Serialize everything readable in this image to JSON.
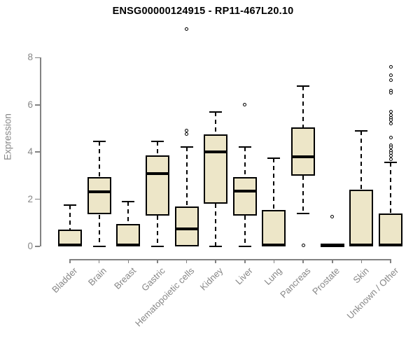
{
  "chart_data": {
    "type": "boxplot",
    "title": "ENSG00000124915 - RP11-467L20.10",
    "xlabel": "",
    "ylabel": "Expression",
    "ylim": [
      0,
      8
    ],
    "yticks": [
      0,
      2,
      4,
      6,
      8
    ],
    "grid": false,
    "legend": false,
    "colors": {
      "box_fill": "#EDE6C8",
      "box_border": "#000000",
      "median": "#000000",
      "axis": "#828282",
      "tick_text": "#878787",
      "title_text": "#000000",
      "background": "#ffffff"
    },
    "categories": [
      "Bladder",
      "Brain",
      "Breast",
      "Gastric",
      "Hematopoietic cells",
      "Kidney",
      "Liver",
      "Lung",
      "Pancreas",
      "Prostate",
      "Skin",
      "Unknown / Other"
    ],
    "series": [
      {
        "category": "Bladder",
        "min": 0,
        "q1": 0,
        "median": 0.05,
        "q3": 0.7,
        "max": 1.75,
        "outliers": []
      },
      {
        "category": "Brain",
        "min": 0,
        "q1": 1.35,
        "median": 2.3,
        "q3": 2.95,
        "max": 4.45,
        "outliers": []
      },
      {
        "category": "Breast",
        "min": 0,
        "q1": 0,
        "median": 0.05,
        "q3": 0.95,
        "max": 1.9,
        "outliers": []
      },
      {
        "category": "Gastric",
        "min": 0,
        "q1": 1.3,
        "median": 3.1,
        "q3": 3.85,
        "max": 4.45,
        "outliers": []
      },
      {
        "category": "Hematopoietic cells",
        "min": 0,
        "q1": 0,
        "median": 0.75,
        "q3": 1.7,
        "max": 4.2,
        "outliers": [
          4.75,
          4.9,
          9.2
        ]
      },
      {
        "category": "Kidney",
        "min": 0,
        "q1": 1.8,
        "median": 4.0,
        "q3": 4.75,
        "max": 5.7,
        "outliers": []
      },
      {
        "category": "Liver",
        "min": 0,
        "q1": 1.3,
        "median": 2.35,
        "q3": 2.95,
        "max": 4.2,
        "outliers": [
          6.0
        ]
      },
      {
        "category": "Lung",
        "min": 0,
        "q1": 0,
        "median": 0.05,
        "q3": 1.55,
        "max": 3.75,
        "outliers": []
      },
      {
        "category": "Pancreas",
        "min": 1.4,
        "q1": 3.0,
        "median": 3.8,
        "q3": 5.05,
        "max": 6.8,
        "outliers": [
          0.05
        ]
      },
      {
        "category": "Prostate",
        "min": 0,
        "q1": 0,
        "median": 0.05,
        "q3": 0.1,
        "max": 0.1,
        "outliers": [
          1.25
        ]
      },
      {
        "category": "Skin",
        "min": 0,
        "q1": 0,
        "median": 0.05,
        "q3": 2.4,
        "max": 4.9,
        "outliers": []
      },
      {
        "category": "Unknown / Other",
        "min": 0,
        "q1": 0,
        "median": 0.05,
        "q3": 1.4,
        "max": 3.55,
        "outliers": [
          7.6,
          7.25,
          7.05,
          6.6,
          6.5,
          5.7,
          5.55,
          5.45,
          5.35,
          5.2,
          4.6,
          4.3,
          4.2,
          4.05,
          3.95,
          3.85,
          3.7
        ]
      }
    ]
  }
}
